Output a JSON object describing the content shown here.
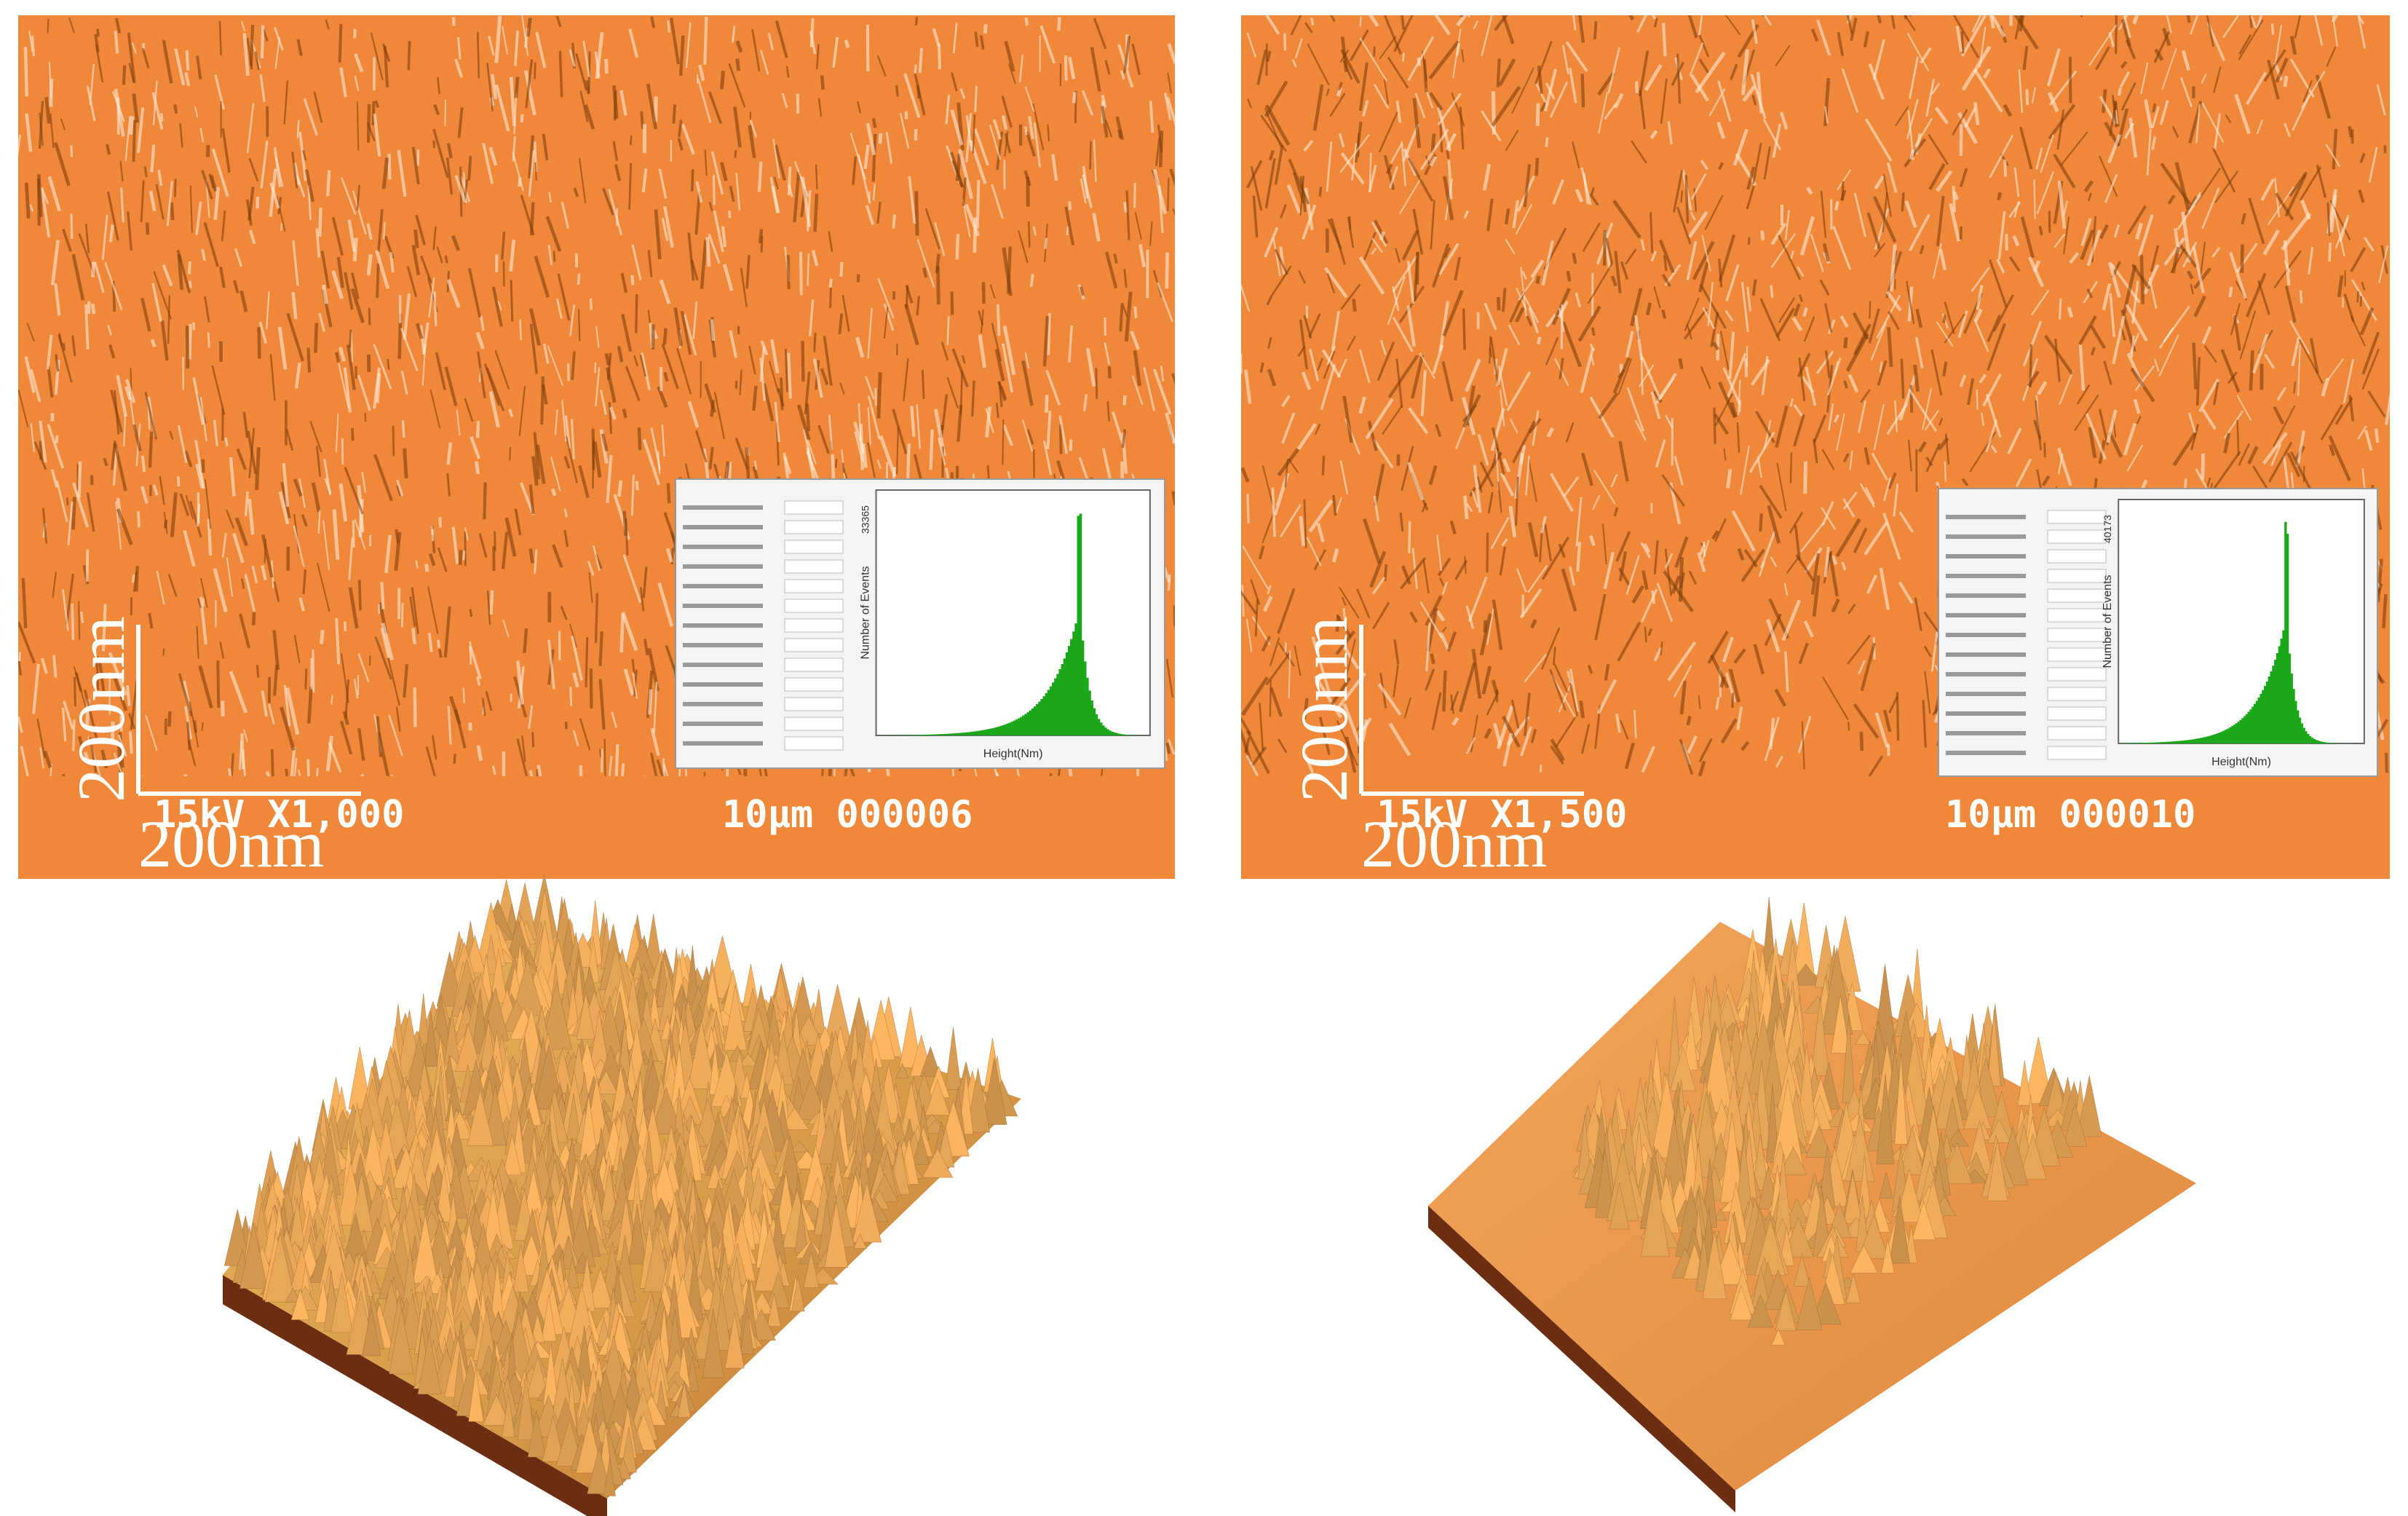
{
  "panels": [
    {
      "sem": {
        "scale_vertical": "200nm",
        "scale_horizontal": "200nm",
        "voltage_mag": "15kV X1,000",
        "field_id": "10µm 000006"
      },
      "histogram": {
        "y_label": "Number of Events",
        "y_max": "33365",
        "x_label": "Height(Nm)"
      }
    },
    {
      "sem": {
        "scale_vertical": "200nm",
        "scale_horizontal": "200nm",
        "voltage_mag": "15kV X1,500",
        "field_id": "10µm 000010"
      },
      "histogram": {
        "y_label": "Number of Events",
        "y_max": "40173",
        "x_label": "Height(Nm)"
      }
    }
  ]
}
